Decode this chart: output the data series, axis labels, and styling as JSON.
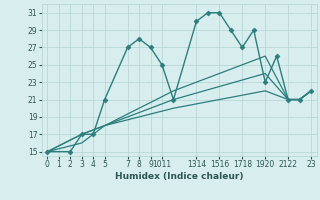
{
  "xlabel": "Humidex (Indice chaleur)",
  "background_color": "#d8eeee",
  "grid_color": "#b8d8d8",
  "line_color": "#2d7d7d",
  "xlim": [
    -0.5,
    23.5
  ],
  "ylim": [
    14.5,
    32
  ],
  "yticks": [
    15,
    17,
    19,
    21,
    23,
    25,
    27,
    29,
    31
  ],
  "xtick_positions": [
    0,
    1,
    2,
    3,
    4,
    5,
    7,
    8,
    9,
    10,
    11,
    13,
    14,
    15,
    16,
    17,
    18,
    19,
    20,
    21,
    22,
    23
  ],
  "xtick_labels": [
    "0",
    "1",
    "2",
    "3",
    "4",
    "5",
    "7",
    "8",
    "9",
    "1011",
    "",
    "1314",
    "",
    "1516",
    "",
    "1718",
    "",
    "1920",
    "",
    "2122",
    "",
    "23"
  ],
  "series": [
    {
      "x": [
        0,
        2,
        3,
        4,
        5,
        7,
        8,
        9,
        10,
        11,
        13,
        14,
        15,
        16,
        17,
        18,
        19,
        20,
        21,
        22,
        23
      ],
      "y": [
        15,
        15,
        17,
        17,
        21,
        27,
        28,
        27,
        25,
        21,
        30,
        31,
        31,
        29,
        27,
        29,
        23,
        26,
        21,
        21,
        22
      ],
      "marker": true,
      "lw": 1.0
    },
    {
      "x": [
        0,
        3,
        5,
        11,
        19,
        21,
        22,
        23
      ],
      "y": [
        15,
        17,
        18,
        22,
        26,
        21,
        21,
        22
      ],
      "marker": false,
      "lw": 0.9
    },
    {
      "x": [
        0,
        3,
        5,
        11,
        19,
        21,
        22,
        23
      ],
      "y": [
        15,
        17,
        18,
        21,
        24,
        21,
        21,
        22
      ],
      "marker": false,
      "lw": 0.9
    },
    {
      "x": [
        0,
        3,
        5,
        11,
        19,
        21,
        22,
        23
      ],
      "y": [
        15,
        16,
        18,
        20,
        22,
        21,
        21,
        22
      ],
      "marker": false,
      "lw": 0.9
    }
  ]
}
